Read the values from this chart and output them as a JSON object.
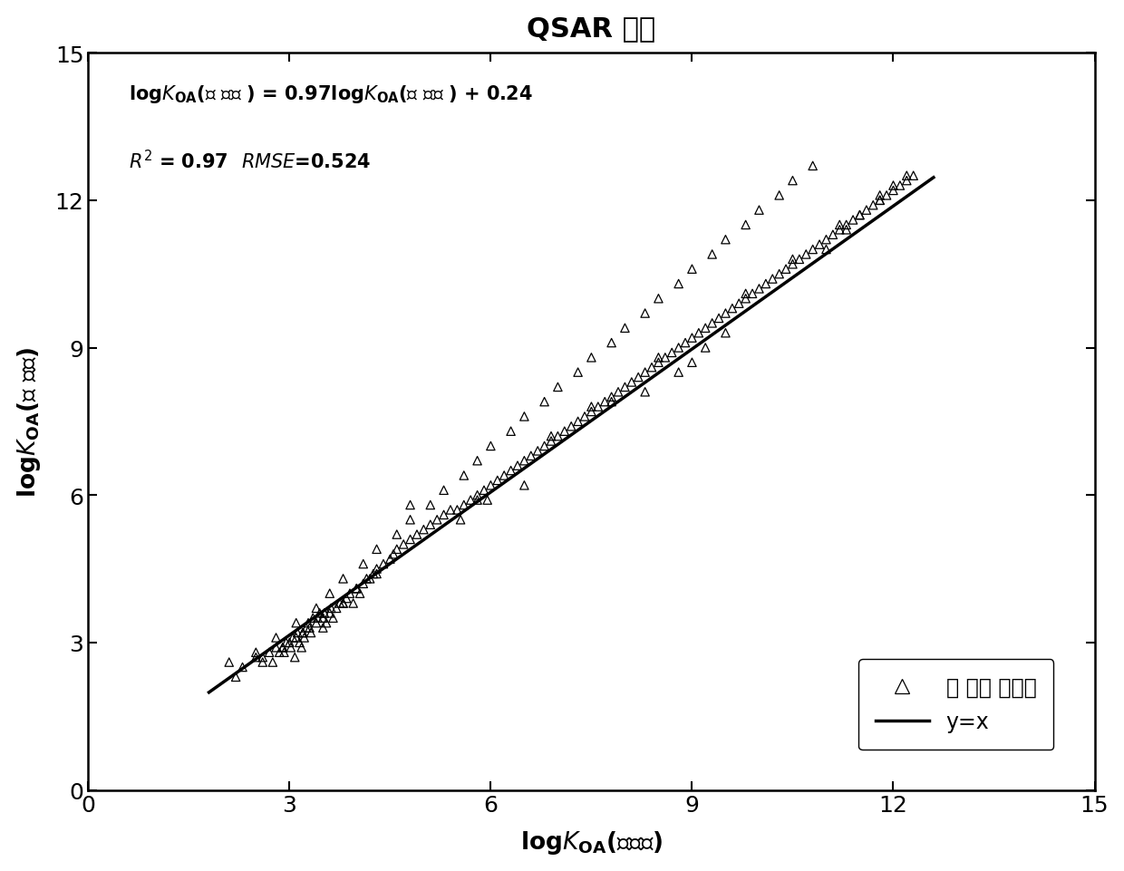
{
  "title": "QSAR 模型",
  "xlim": [
    0,
    15
  ],
  "ylim": [
    0,
    15
  ],
  "xticks": [
    0,
    3,
    6,
    9,
    12,
    15
  ],
  "yticks": [
    0,
    3,
    6,
    9,
    12,
    15
  ],
  "slope": 0.97,
  "intercept": 0.24,
  "r2": 0.97,
  "rmse": 0.524,
  "line_color": "#000000",
  "marker_color": "#000000",
  "legend_scatter_label": "训 练集 化合物",
  "legend_line_label": "y=x",
  "scatter_x": [
    2.1,
    2.3,
    2.5,
    2.6,
    2.7,
    2.75,
    2.8,
    2.85,
    2.9,
    2.92,
    2.95,
    3.0,
    3.02,
    3.05,
    3.08,
    3.1,
    3.12,
    3.15,
    3.18,
    3.2,
    3.22,
    3.25,
    3.28,
    3.3,
    3.32,
    3.35,
    3.4,
    3.42,
    3.45,
    3.5,
    3.52,
    3.55,
    3.6,
    3.62,
    3.65,
    3.7,
    3.75,
    3.8,
    3.85,
    3.9,
    3.95,
    4.0,
    4.05,
    4.1,
    4.15,
    4.2,
    4.25,
    4.3,
    4.4,
    4.5,
    4.55,
    4.6,
    4.7,
    4.8,
    4.9,
    5.0,
    5.1,
    5.2,
    5.3,
    5.4,
    5.5,
    5.55,
    5.6,
    5.7,
    5.8,
    5.9,
    5.95,
    6.0,
    6.1,
    6.2,
    6.3,
    6.4,
    6.5,
    6.6,
    6.7,
    6.8,
    6.9,
    7.0,
    7.1,
    7.2,
    7.3,
    7.4,
    7.5,
    7.6,
    7.7,
    7.8,
    7.9,
    8.0,
    8.1,
    8.2,
    8.3,
    8.4,
    8.5,
    8.6,
    8.7,
    8.8,
    8.9,
    9.0,
    9.1,
    9.2,
    9.3,
    9.4,
    9.5,
    9.6,
    9.7,
    9.8,
    9.9,
    10.0,
    10.1,
    10.2,
    10.3,
    10.4,
    10.5,
    10.6,
    10.7,
    10.8,
    10.9,
    11.0,
    11.1,
    11.2,
    11.3,
    11.4,
    11.5,
    11.6,
    11.7,
    11.8,
    11.9,
    12.0,
    12.1,
    12.2,
    12.3,
    3.5,
    4.8,
    6.5,
    7.8,
    8.3,
    8.8,
    9.0,
    9.2,
    9.5,
    2.5,
    2.8,
    3.1,
    3.4,
    3.6,
    3.8,
    4.1,
    4.3,
    4.6,
    4.8,
    5.1,
    5.3,
    5.6,
    5.8,
    6.0,
    6.3,
    6.5,
    6.8,
    7.0,
    7.3,
    7.5,
    7.8,
    8.0,
    8.3,
    8.5,
    8.8,
    9.0,
    9.3,
    9.5,
    9.8,
    10.0,
    10.3,
    10.5,
    10.8,
    11.0,
    11.3,
    11.5,
    11.8,
    12.0,
    2.2,
    2.6,
    2.9,
    3.2,
    3.5,
    3.8,
    4.0,
    4.3,
    5.8,
    6.9,
    7.5,
    8.5,
    9.8,
    10.5,
    11.2,
    11.8,
    12.2
  ],
  "scatter_y": [
    2.6,
    2.5,
    2.7,
    2.7,
    2.8,
    2.6,
    2.9,
    2.8,
    2.9,
    2.8,
    3.0,
    3.0,
    2.9,
    3.1,
    2.7,
    3.1,
    3.2,
    3.0,
    2.9,
    3.2,
    3.1,
    3.3,
    3.4,
    3.3,
    3.2,
    3.5,
    3.4,
    3.5,
    3.6,
    3.5,
    3.6,
    3.4,
    3.6,
    3.7,
    3.5,
    3.7,
    3.8,
    3.8,
    3.9,
    4.0,
    3.8,
    4.1,
    4.0,
    4.2,
    4.3,
    4.3,
    4.4,
    4.5,
    4.6,
    4.7,
    4.8,
    4.9,
    5.0,
    5.1,
    5.2,
    5.3,
    5.4,
    5.5,
    5.6,
    5.7,
    5.7,
    5.5,
    5.8,
    5.9,
    6.0,
    6.1,
    5.9,
    6.2,
    6.3,
    6.4,
    6.5,
    6.6,
    6.7,
    6.8,
    6.9,
    7.0,
    7.1,
    7.2,
    7.3,
    7.4,
    7.5,
    7.6,
    7.7,
    7.8,
    7.9,
    8.0,
    8.1,
    8.2,
    8.3,
    8.4,
    8.5,
    8.6,
    8.7,
    8.8,
    8.9,
    9.0,
    9.1,
    9.2,
    9.3,
    9.4,
    9.5,
    9.6,
    9.7,
    9.8,
    9.9,
    10.0,
    10.1,
    10.2,
    10.3,
    10.4,
    10.5,
    10.6,
    10.7,
    10.8,
    10.9,
    11.0,
    11.1,
    11.2,
    11.3,
    11.4,
    11.5,
    11.6,
    11.7,
    11.8,
    11.9,
    12.0,
    12.1,
    12.2,
    12.3,
    12.4,
    12.5,
    3.3,
    5.8,
    6.2,
    7.9,
    8.1,
    8.5,
    8.7,
    9.0,
    9.3,
    2.8,
    3.1,
    3.4,
    3.7,
    4.0,
    4.3,
    4.6,
    4.9,
    5.2,
    5.5,
    5.8,
    6.1,
    6.4,
    6.7,
    7.0,
    7.3,
    7.6,
    7.9,
    8.2,
    8.5,
    8.8,
    9.1,
    9.4,
    9.7,
    10.0,
    10.3,
    10.6,
    10.9,
    11.2,
    11.5,
    11.8,
    12.1,
    12.4,
    12.7,
    11.0,
    11.4,
    11.7,
    12.0,
    12.3,
    2.3,
    2.6,
    2.9,
    3.2,
    3.5,
    3.8,
    4.1,
    4.4,
    5.9,
    7.2,
    7.8,
    8.8,
    10.1,
    10.8,
    11.5,
    12.1,
    12.5
  ]
}
